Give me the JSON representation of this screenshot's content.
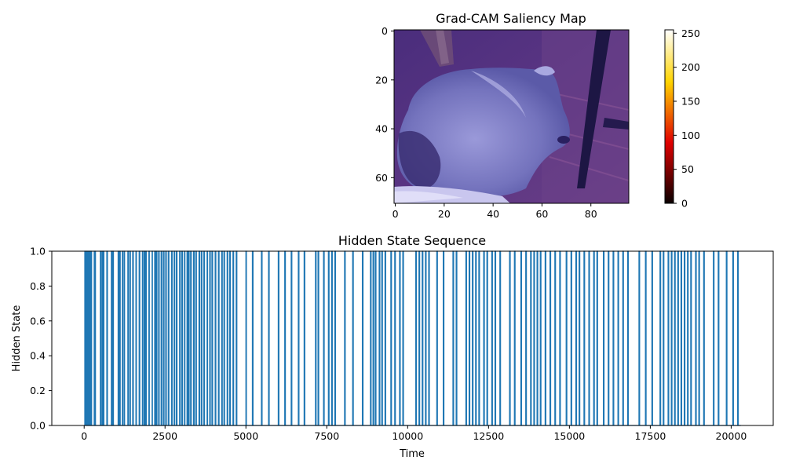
{
  "chart_data": [
    {
      "type": "heatmap",
      "title": "Grad-CAM Saliency Map",
      "image_description": "photo of a grey fluffy cat lying on a wooden floor next to a chair leg, tinted blue/purple",
      "x_ticks": [
        0,
        20,
        40,
        60,
        80
      ],
      "y_ticks": [
        0,
        20,
        40,
        60
      ],
      "xlim": [
        -0.5,
        95.5
      ],
      "ylim": [
        70.5,
        -0.5
      ],
      "colorbar": {
        "colormap": "hot",
        "ticks": [
          0,
          50,
          100,
          150,
          200,
          250
        ],
        "range": [
          0,
          255
        ]
      }
    },
    {
      "type": "line",
      "title": "Hidden State Sequence",
      "xlabel": "Time",
      "ylabel": "Hidden State",
      "xlim": [
        -1000,
        21300
      ],
      "ylim": [
        0,
        1
      ],
      "x_ticks": [
        0,
        2500,
        5000,
        7500,
        10000,
        12500,
        15000,
        17500,
        20000
      ],
      "y_ticks": [
        "0.0",
        "0.2",
        "0.4",
        "0.6",
        "0.8",
        "1.0"
      ],
      "x_range": [
        0,
        20300
      ],
      "color": "#1f77b4",
      "state_one_intervals": [
        [
          20,
          40
        ],
        [
          60,
          80
        ],
        [
          100,
          110
        ],
        [
          135,
          150
        ],
        [
          180,
          200
        ],
        [
          215,
          230
        ],
        [
          310,
          325
        ],
        [
          340,
          350
        ],
        [
          500,
          520
        ],
        [
          555,
          575
        ],
        [
          600,
          610
        ],
        [
          700,
          720
        ],
        [
          840,
          860
        ],
        [
          890,
          905
        ],
        [
          1050,
          1070
        ],
        [
          1100,
          1115
        ],
        [
          1180,
          1200
        ],
        [
          1240,
          1250
        ],
        [
          1350,
          1370
        ],
        [
          1415,
          1430
        ],
        [
          1500,
          1520
        ],
        [
          1600,
          1615
        ],
        [
          1700,
          1720
        ],
        [
          1800,
          1810
        ],
        [
          1850,
          1870
        ],
        [
          1900,
          1920
        ],
        [
          2000,
          2015
        ],
        [
          2100,
          2110
        ],
        [
          2180,
          2200
        ],
        [
          2230,
          2250
        ],
        [
          2300,
          2320
        ],
        [
          2380,
          2400
        ],
        [
          2450,
          2470
        ],
        [
          2520,
          2540
        ],
        [
          2600,
          2620
        ],
        [
          2700,
          2720
        ],
        [
          2780,
          2800
        ],
        [
          2850,
          2870
        ],
        [
          2950,
          2970
        ],
        [
          3020,
          3040
        ],
        [
          3100,
          3115
        ],
        [
          3180,
          3200
        ],
        [
          3230,
          3245
        ],
        [
          3290,
          3310
        ],
        [
          3380,
          3400
        ],
        [
          3450,
          3470
        ],
        [
          3550,
          3570
        ],
        [
          3620,
          3640
        ],
        [
          3700,
          3720
        ],
        [
          3800,
          3815
        ],
        [
          3880,
          3900
        ],
        [
          3950,
          3970
        ],
        [
          4050,
          4070
        ],
        [
          4150,
          4170
        ],
        [
          4250,
          4270
        ],
        [
          4320,
          4340
        ],
        [
          4420,
          4440
        ],
        [
          4500,
          4520
        ],
        [
          4600,
          4620
        ],
        [
          4700,
          4720
        ],
        [
          5000,
          5015
        ],
        [
          5200,
          5220
        ],
        [
          5480,
          5500
        ],
        [
          5700,
          5720
        ],
        [
          6000,
          6020
        ],
        [
          6200,
          6220
        ],
        [
          6400,
          6420
        ],
        [
          6620,
          6640
        ],
        [
          6800,
          6820
        ],
        [
          7150,
          7170
        ],
        [
          7230,
          7250
        ],
        [
          7400,
          7420
        ],
        [
          7550,
          7570
        ],
        [
          7650,
          7670
        ],
        [
          7750,
          7770
        ],
        [
          8050,
          8070
        ],
        [
          8300,
          8320
        ],
        [
          8600,
          8620
        ],
        [
          8850,
          8870
        ],
        [
          8930,
          8950
        ],
        [
          9000,
          9020
        ],
        [
          9120,
          9140
        ],
        [
          9200,
          9220
        ],
        [
          9300,
          9320
        ],
        [
          9480,
          9500
        ],
        [
          9600,
          9620
        ],
        [
          9750,
          9770
        ],
        [
          9850,
          9870
        ],
        [
          10250,
          10270
        ],
        [
          10350,
          10370
        ],
        [
          10450,
          10470
        ],
        [
          10550,
          10570
        ],
        [
          10650,
          10670
        ],
        [
          10900,
          10920
        ],
        [
          11100,
          11120
        ],
        [
          11400,
          11420
        ],
        [
          11500,
          11520
        ],
        [
          11800,
          11820
        ],
        [
          11900,
          11920
        ],
        [
          12000,
          12020
        ],
        [
          12100,
          12120
        ],
        [
          12200,
          12220
        ],
        [
          12350,
          12370
        ],
        [
          12450,
          12470
        ],
        [
          12600,
          12620
        ],
        [
          12700,
          12720
        ],
        [
          12850,
          12870
        ],
        [
          13150,
          13170
        ],
        [
          13300,
          13320
        ],
        [
          13500,
          13520
        ],
        [
          13650,
          13670
        ],
        [
          13800,
          13820
        ],
        [
          13900,
          13920
        ],
        [
          14000,
          14020
        ],
        [
          14100,
          14120
        ],
        [
          14250,
          14270
        ],
        [
          14400,
          14420
        ],
        [
          14550,
          14570
        ],
        [
          14700,
          14720
        ],
        [
          14900,
          14920
        ],
        [
          15050,
          15070
        ],
        [
          15200,
          15220
        ],
        [
          15300,
          15320
        ],
        [
          15450,
          15470
        ],
        [
          15600,
          15620
        ],
        [
          15750,
          15770
        ],
        [
          15850,
          15870
        ],
        [
          16050,
          16070
        ],
        [
          16200,
          16220
        ],
        [
          16350,
          16370
        ],
        [
          16500,
          16520
        ],
        [
          16650,
          16670
        ],
        [
          16800,
          16820
        ],
        [
          17150,
          17170
        ],
        [
          17350,
          17370
        ],
        [
          17550,
          17570
        ],
        [
          17800,
          17820
        ],
        [
          17900,
          17920
        ],
        [
          18050,
          18070
        ],
        [
          18150,
          18170
        ],
        [
          18250,
          18270
        ],
        [
          18350,
          18370
        ],
        [
          18450,
          18470
        ],
        [
          18550,
          18570
        ],
        [
          18650,
          18670
        ],
        [
          18750,
          18770
        ],
        [
          18900,
          18920
        ],
        [
          19000,
          19020
        ],
        [
          19150,
          19170
        ],
        [
          19450,
          19470
        ],
        [
          19600,
          19620
        ],
        [
          19850,
          19870
        ],
        [
          20050,
          20070
        ],
        [
          20200,
          20220
        ]
      ]
    }
  ]
}
